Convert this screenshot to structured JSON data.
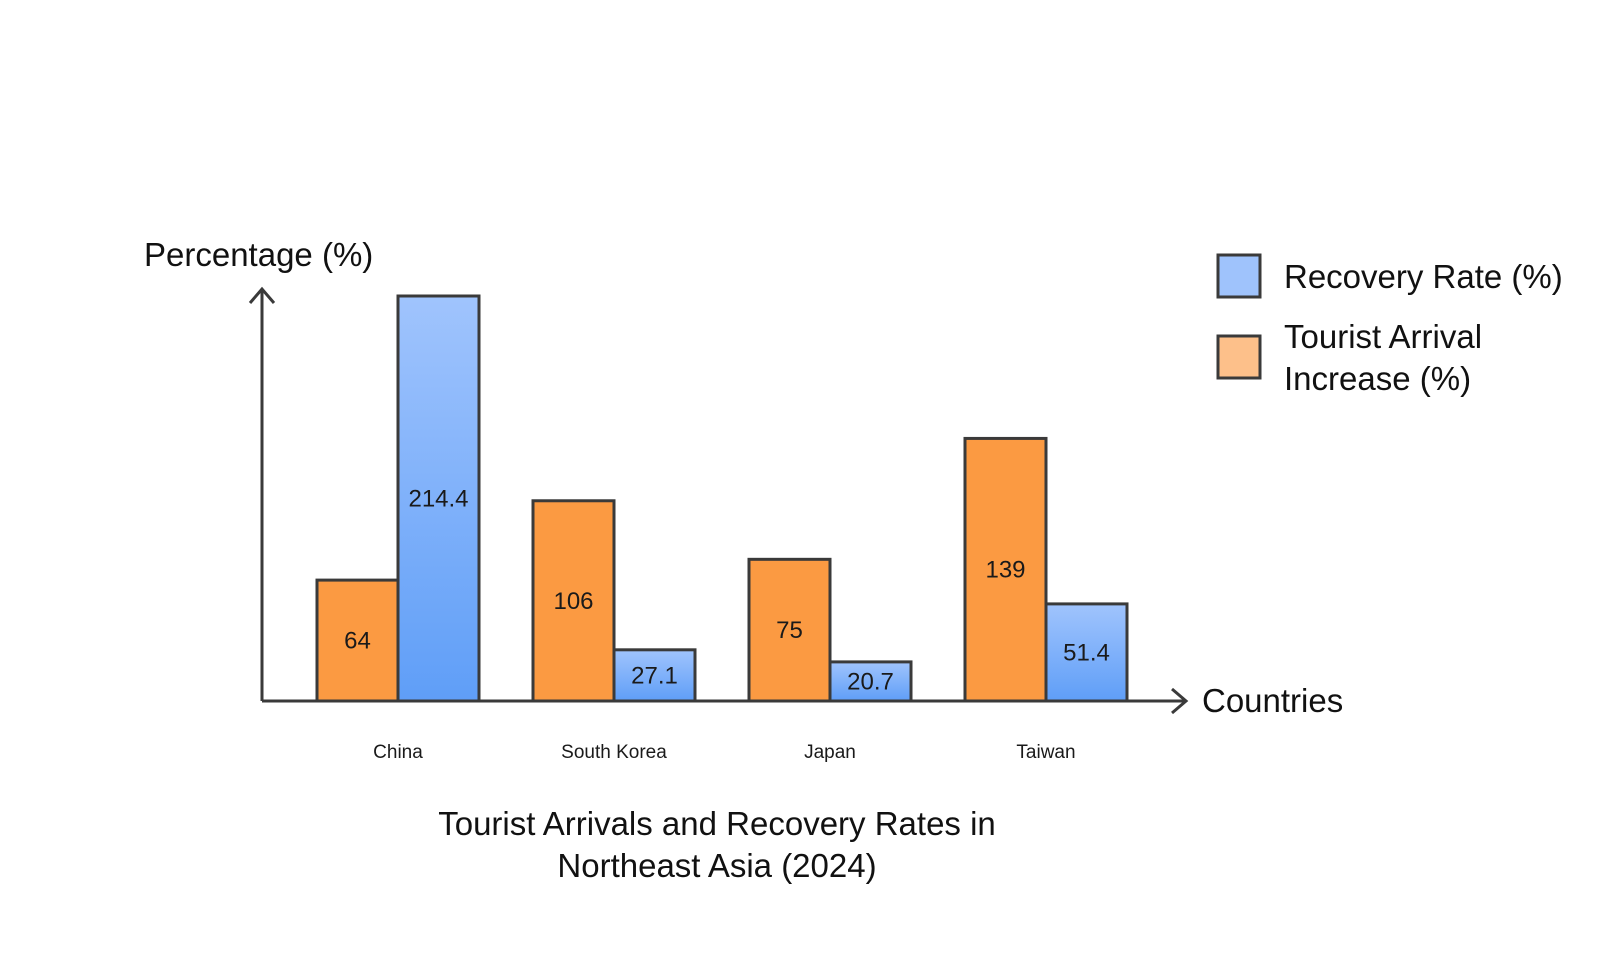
{
  "chart_data": {
    "type": "bar",
    "title": "Tourist Arrivals and Recovery Rates in Northeast Asia (2024)",
    "title_lines": [
      "Tourist Arrivals and Recovery Rates in",
      "Northeast Asia (2024)"
    ],
    "xlabel": "Countries",
    "ylabel": "Percentage (%)",
    "categories": [
      "China",
      "South Korea",
      "Japan",
      "Taiwan"
    ],
    "series": [
      {
        "name": "Tourist Arrival Increase (%)",
        "legend_lines": [
          "Tourist Arrival",
          "Increase (%)"
        ],
        "values": [
          64,
          106,
          75,
          139
        ],
        "value_labels": [
          "64",
          "106",
          "75",
          "139"
        ],
        "color": "#fb9a42",
        "legend_color": "#fdc08a"
      },
      {
        "name": "Recovery Rate (%)",
        "legend_lines": [
          "Recovery Rate (%)"
        ],
        "values": [
          214.4,
          27.1,
          20.7,
          51.4
        ],
        "value_labels": [
          "214.4",
          "27.1",
          "20.7",
          "51.4"
        ],
        "color": "#5f9ef7",
        "color_light": "#a0c4fd",
        "legend_color": "#9fc3fc"
      }
    ],
    "ylim": [
      0,
      214.4
    ],
    "legend_position": "top-right",
    "grid": false
  }
}
